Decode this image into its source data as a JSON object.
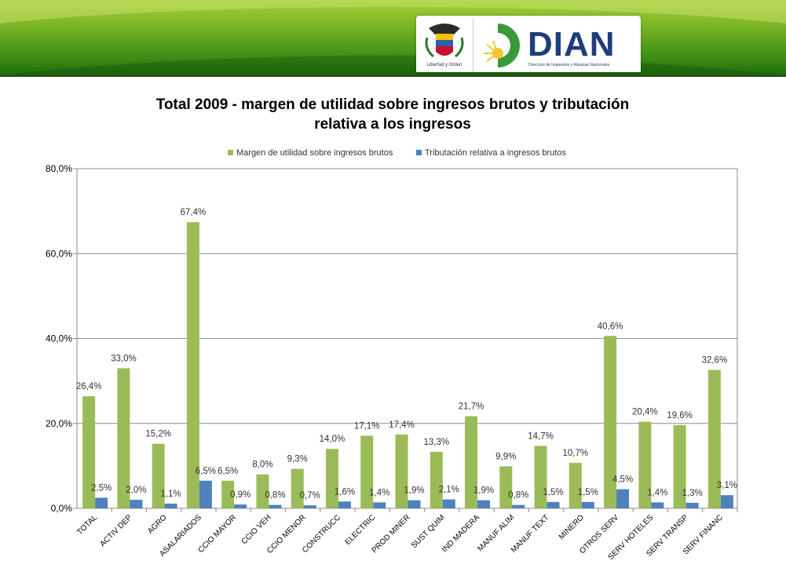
{
  "header": {
    "shield_caption": "Libertad y Orden",
    "brand": "DIAN",
    "brand_subtitle": "Dirección de Impuestos y Aduanas Nacionales"
  },
  "colors": {
    "series_green": "#9bbb59",
    "series_blue": "#4f81bd",
    "banner_green": "#4d9a1b"
  },
  "chart_data": {
    "type": "bar",
    "title_line1": "Total 2009 - margen de utilidad sobre ingresos brutos y tributación",
    "title_line2": "relativa a los ingresos",
    "categories": [
      "TOTAL",
      "ACTIV DEP",
      "AGRO",
      "ASALARIADOS",
      "CCIO MAYOR",
      "CCIO VEH",
      "CCIO MENOR",
      "CONSTRUCC",
      "ELECTRIC",
      "PROD MINER",
      "SUST QUIM",
      "IND MADERA",
      "MANUF ALIM",
      "MANUF TEXT",
      "MINERO",
      "OTROS SERV",
      "SERV HOTELES",
      "SERV TRANSP",
      "SERV FINANC"
    ],
    "series": [
      {
        "name": "Margen de utilidad sobre ingresos brutos",
        "color": "#9bbb59",
        "values": [
          26.4,
          33.0,
          15.2,
          67.4,
          6.5,
          8.0,
          9.3,
          14.0,
          17.1,
          17.4,
          13.3,
          21.7,
          9.9,
          14.7,
          10.7,
          40.6,
          20.4,
          19.6,
          32.6
        ],
        "labels": [
          "26,4%",
          "33,0%",
          "15,2%",
          "67,4%",
          "6,5%",
          "8,0%",
          "9,3%",
          "14,0%",
          "17,1%",
          "17,4%",
          "13,3%",
          "21,7%",
          "9,9%",
          "14,7%",
          "10,7%",
          "40,6%",
          "20,4%",
          "19,6%",
          "32,6%"
        ]
      },
      {
        "name": "Tributación relativa a ingresos brutos",
        "color": "#4f81bd",
        "values": [
          2.5,
          2.0,
          1.1,
          6.5,
          0.9,
          0.8,
          0.7,
          1.6,
          1.4,
          1.9,
          2.1,
          1.9,
          0.8,
          1.5,
          1.5,
          4.5,
          1.4,
          1.3,
          3.1
        ],
        "labels": [
          "2,5%",
          "2,0%",
          "1,1%",
          "6,5%",
          "0,9%",
          "0,8%",
          "0,7%",
          "1,6%",
          "1,4%",
          "1,9%",
          "2,1%",
          "1,9%",
          "0,8%",
          "1,5%",
          "1,5%",
          "4,5%",
          "1,4%",
          "1,3%",
          "3,1%"
        ]
      }
    ],
    "yticks": [
      "0,0%",
      "20,0%",
      "40,0%",
      "60,0%",
      "80,0%"
    ],
    "ylim": [
      0,
      80
    ],
    "grid": true,
    "legend_position": "top"
  }
}
